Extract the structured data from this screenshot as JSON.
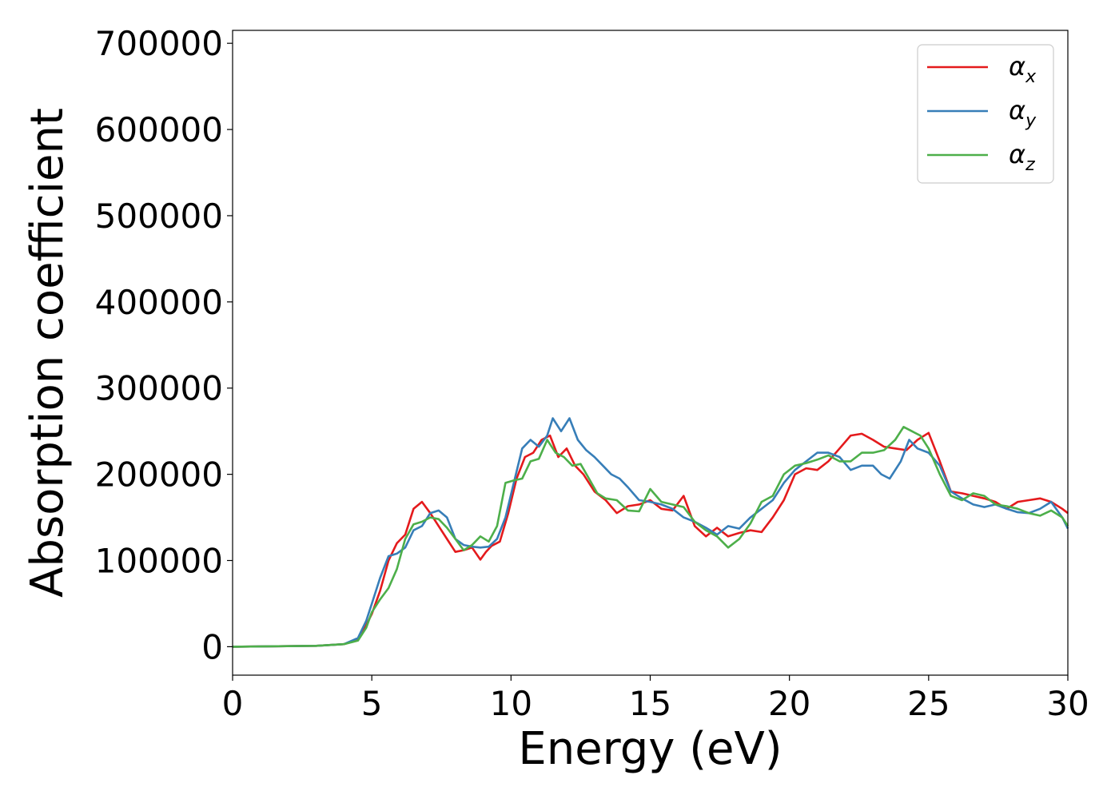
{
  "chart_data": {
    "type": "line",
    "title": "",
    "xlabel": "Energy (eV)",
    "ylabel": "Absorption coefficient",
    "xlim": [
      0,
      30
    ],
    "ylim": [
      -33000,
      715000
    ],
    "xticks": [
      0,
      5,
      10,
      15,
      20,
      25,
      30
    ],
    "yticks": [
      0,
      100000,
      200000,
      300000,
      400000,
      500000,
      600000,
      700000
    ],
    "grid": false,
    "legend_position": "top-right",
    "series": [
      {
        "name": "αx",
        "symbol": "α",
        "subscript": "x",
        "color": "#e41a1c",
        "x": [
          0,
          3,
          4,
          4.5,
          4.8,
          5,
          5.3,
          5.6,
          5.9,
          6.2,
          6.5,
          6.8,
          7.1,
          7.4,
          7.7,
          8,
          8.3,
          8.6,
          8.9,
          9.1,
          9.3,
          9.6,
          9.9,
          10.2,
          10.5,
          10.8,
          11.1,
          11.4,
          11.7,
          12,
          12.3,
          12.6,
          13,
          13.4,
          13.8,
          14.2,
          14.6,
          15,
          15.4,
          15.8,
          16.2,
          16.6,
          17,
          17.4,
          17.8,
          18.2,
          18.6,
          19,
          19.4,
          19.8,
          20.2,
          20.6,
          21,
          21.4,
          21.8,
          22.2,
          22.6,
          23,
          23.4,
          23.8,
          24.2,
          24.6,
          25,
          25.4,
          25.8,
          26.2,
          26.6,
          27,
          27.4,
          27.8,
          28.2,
          28.6,
          29,
          29.4,
          29.8,
          30
        ],
        "y": [
          0,
          1000,
          3000,
          8000,
          25000,
          38000,
          65000,
          100000,
          120000,
          130000,
          160000,
          168000,
          155000,
          140000,
          125000,
          110000,
          112000,
          115000,
          101000,
          110000,
          117000,
          122000,
          155000,
          195000,
          220000,
          225000,
          240000,
          245000,
          220000,
          230000,
          210000,
          200000,
          180000,
          170000,
          155000,
          163000,
          165000,
          170000,
          160000,
          158000,
          175000,
          140000,
          128000,
          138000,
          128000,
          132000,
          135000,
          133000,
          150000,
          170000,
          200000,
          207000,
          205000,
          215000,
          230000,
          245000,
          247000,
          240000,
          232000,
          230000,
          228000,
          240000,
          248000,
          215000,
          180000,
          178000,
          175000,
          172000,
          168000,
          160000,
          168000,
          170000,
          172000,
          168000,
          160000,
          155000
        ]
      },
      {
        "name": "αy",
        "symbol": "α",
        "subscript": "y",
        "color": "#377eb8",
        "x": [
          0,
          3,
          4,
          4.5,
          4.8,
          5,
          5.3,
          5.6,
          5.9,
          6.2,
          6.5,
          6.8,
          7.1,
          7.4,
          7.7,
          8,
          8.3,
          8.6,
          8.9,
          9.2,
          9.5,
          9.8,
          10.1,
          10.4,
          10.7,
          11,
          11.3,
          11.5,
          11.8,
          12.1,
          12.4,
          12.7,
          13,
          13.3,
          13.6,
          13.9,
          14.2,
          14.6,
          15,
          15.4,
          15.8,
          16.2,
          16.6,
          17,
          17.4,
          17.8,
          18.2,
          18.6,
          19,
          19.4,
          19.8,
          20.2,
          20.6,
          21,
          21.4,
          21.8,
          22.2,
          22.6,
          23,
          23.3,
          23.6,
          24,
          24.3,
          24.6,
          25,
          25.4,
          25.8,
          26.2,
          26.6,
          27,
          27.4,
          27.8,
          28.2,
          28.6,
          29,
          29.4,
          29.8,
          30
        ],
        "y": [
          0,
          1000,
          3000,
          10000,
          30000,
          50000,
          80000,
          105000,
          108000,
          115000,
          135000,
          140000,
          155000,
          158000,
          150000,
          125000,
          118000,
          116000,
          115000,
          116000,
          125000,
          150000,
          190000,
          230000,
          240000,
          232000,
          245000,
          265000,
          250000,
          265000,
          240000,
          228000,
          220000,
          210000,
          200000,
          195000,
          185000,
          170000,
          168000,
          165000,
          160000,
          150000,
          145000,
          138000,
          130000,
          140000,
          137000,
          150000,
          160000,
          170000,
          190000,
          205000,
          215000,
          225000,
          225000,
          220000,
          205000,
          210000,
          210000,
          200000,
          195000,
          215000,
          240000,
          230000,
          225000,
          210000,
          180000,
          172000,
          165000,
          162000,
          165000,
          160000,
          156000,
          155000,
          160000,
          168000,
          150000,
          137000
        ]
      },
      {
        "name": "αz",
        "symbol": "α",
        "subscript": "z",
        "color": "#4daf4a",
        "x": [
          0,
          3,
          4,
          4.5,
          4.8,
          5,
          5.3,
          5.6,
          5.9,
          6.2,
          6.5,
          6.8,
          7.1,
          7.4,
          7.7,
          8,
          8.3,
          8.6,
          8.9,
          9.2,
          9.5,
          9.8,
          10.1,
          10.4,
          10.7,
          11,
          11.3,
          11.6,
          11.9,
          12.2,
          12.5,
          12.8,
          13.1,
          13.4,
          13.8,
          14.2,
          14.6,
          15,
          15.4,
          15.8,
          16.2,
          16.6,
          17,
          17.4,
          17.8,
          18.2,
          18.6,
          19,
          19.4,
          19.8,
          20.2,
          20.6,
          21,
          21.4,
          21.8,
          22.2,
          22.6,
          23,
          23.4,
          23.8,
          24.1,
          24.4,
          24.7,
          25,
          25.4,
          25.8,
          26.2,
          26.6,
          27,
          27.4,
          27.8,
          28.2,
          28.6,
          29,
          29.4,
          29.8,
          30
        ],
        "y": [
          0,
          1000,
          3000,
          7000,
          22000,
          40000,
          55000,
          68000,
          90000,
          125000,
          142000,
          145000,
          150000,
          148000,
          138000,
          125000,
          112000,
          118000,
          128000,
          122000,
          140000,
          190000,
          193000,
          195000,
          215000,
          218000,
          240000,
          225000,
          220000,
          210000,
          212000,
          195000,
          178000,
          172000,
          170000,
          158000,
          157000,
          183000,
          168000,
          165000,
          162000,
          145000,
          135000,
          128000,
          115000,
          125000,
          143000,
          168000,
          175000,
          200000,
          210000,
          213000,
          217000,
          222000,
          215000,
          215000,
          225000,
          225000,
          228000,
          240000,
          255000,
          250000,
          245000,
          230000,
          200000,
          175000,
          170000,
          178000,
          175000,
          165000,
          163000,
          160000,
          155000,
          152000,
          158000,
          150000,
          140000
        ]
      }
    ]
  }
}
